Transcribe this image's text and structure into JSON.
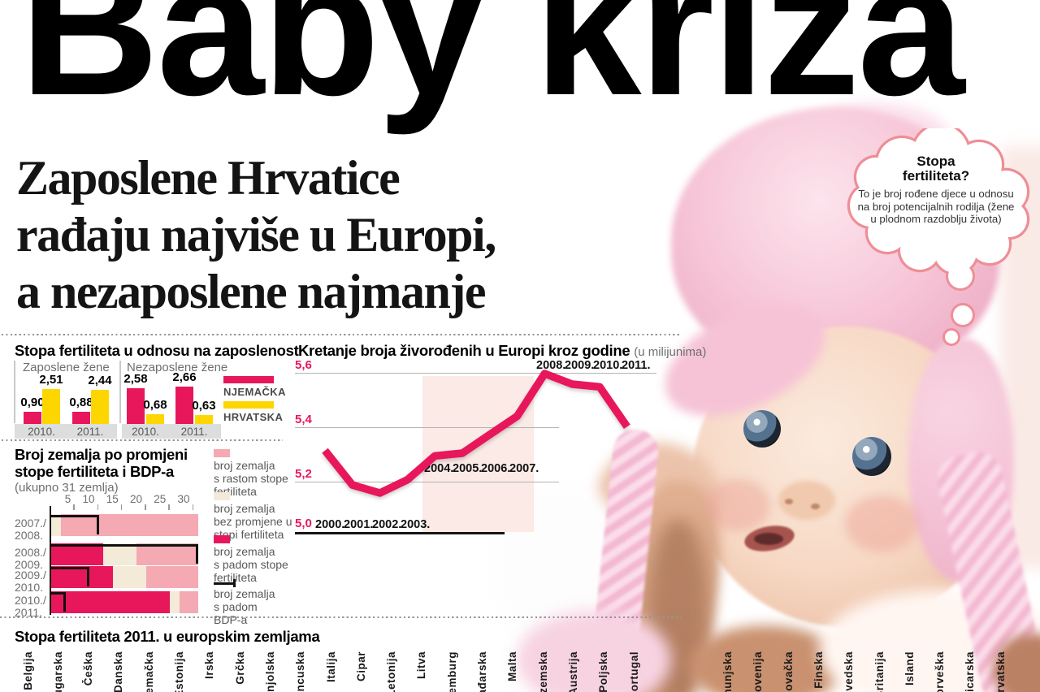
{
  "headline": "Baby kriza",
  "subheadline_lines": [
    "Zaposlene Hrvatice",
    "rađaju najviše u Europi,",
    "a nezaposlene najmanje"
  ],
  "bubble": {
    "title_lines": [
      "Stopa",
      "fertiliteta?"
    ],
    "body": "To je broj rođene djece u odnosu na broj potencijalnih rodilja (žene u plodnom razdoblju života)"
  },
  "colors": {
    "hot_pink": "#e8175c",
    "yellow": "#fdd600",
    "light_pink": "#f4a9b3",
    "cream": "#f3ead8",
    "band": "#fbeae6",
    "salmon": "#ee8e96",
    "strip_gray": "#dcdddd",
    "gray_text": "#6d6e70",
    "dark_text": "#4a4a4c"
  },
  "chart_data": [
    {
      "type": "bar",
      "title": "Stopa fertiliteta u odnosu na zaposlenost",
      "groups": [
        {
          "label": "Zaposlene žene",
          "categories": [
            "2010.",
            "2011."
          ],
          "series": [
            {
              "name": "NJEMAČKA",
              "color": "#e8175c",
              "values": [
                "0,90",
                "0,88"
              ]
            },
            {
              "name": "HRVATSKA",
              "color": "#fdd600",
              "values": [
                "2,51",
                "2,44"
              ]
            }
          ]
        },
        {
          "label": "Nezaposlene žene",
          "categories": [
            "2010.",
            "2011."
          ],
          "series": [
            {
              "name": "NJEMAČKA",
              "color": "#e8175c",
              "values": [
                "2,58",
                "2,66"
              ]
            },
            {
              "name": "HRVATSKA",
              "color": "#fdd600",
              "values": [
                "0,68",
                "0,63"
              ]
            }
          ]
        }
      ],
      "legend": [
        "NJEMAČKA",
        "HRVATSKA"
      ]
    },
    {
      "type": "line",
      "title": "Kretanje broja živorođenih u Europi kroz godine",
      "unit_note": "(u milijunima)",
      "years": [
        "2000.",
        "2001.",
        "2002.",
        "2003.",
        "2004.",
        "2005.",
        "2006.",
        "2007.",
        "2008.",
        "2009.",
        "2010.",
        "2011."
      ],
      "values": [
        5.31,
        5.18,
        5.15,
        5.2,
        5.29,
        5.3,
        5.37,
        5.44,
        5.6,
        5.56,
        5.55,
        5.4
      ],
      "ylim": [
        5.0,
        5.6
      ],
      "yticks": [
        "5,6",
        "5,4",
        "5,2",
        "5,0"
      ],
      "highlight_years": [
        "2004.",
        "2005.",
        "2006.",
        "2007."
      ],
      "line_color": "#e8175c",
      "grid": true
    },
    {
      "type": "stacked-bar-horizontal",
      "title_lines": [
        "Broj zemalja po promjeni",
        "stope fertiliteta i BDP-a"
      ],
      "subtitle": "(ukupno 31 zemlja)",
      "total_countries": 31,
      "xticks": [
        5,
        10,
        15,
        20,
        25,
        30
      ],
      "rows": [
        {
          "label_lines": [
            "2007./",
            "2008."
          ],
          "s_padom": 0,
          "bez_promjene": 2,
          "s_rastom": 29,
          "pad_bdp": 10
        },
        {
          "label_lines": [
            "2008./",
            "2009."
          ],
          "s_padom": 11,
          "bez_promjene": 7,
          "s_rastom": 13,
          "pad_bdp": 31
        },
        {
          "label_lines": [
            "2009./",
            "2010."
          ],
          "s_padom": 13,
          "bez_promjene": 7,
          "s_rastom": 11,
          "pad_bdp": 8
        },
        {
          "label_lines": [
            "2010./",
            "2011."
          ],
          "s_padom": 25,
          "bez_promjene": 2,
          "s_rastom": 4,
          "pad_bdp": 3
        }
      ],
      "legend": [
        {
          "key": "s_rastom",
          "swatch": "light_pink",
          "label_lines": [
            "broj zemalja",
            "s rastom stope",
            "fertiliteta"
          ]
        },
        {
          "key": "bez_promjene",
          "swatch": "cream",
          "label_lines": [
            "broj zemalja",
            "bez promjene u",
            "stopi fertiliteta"
          ]
        },
        {
          "key": "s_padom",
          "swatch": "hot_pink",
          "label_lines": [
            "broj zemalja",
            "s padom stope",
            "fertiliteta"
          ]
        },
        {
          "key": "pad_bdp",
          "swatch": "bracket",
          "label_lines": [
            "broj zemalja",
            "s padom",
            "BDP-a"
          ]
        }
      ]
    },
    {
      "type": "bar",
      "title": "Stopa fertiliteta 2011. u europskim zemljama",
      "categories": [
        "Belgija",
        "Bugarska",
        "Češka",
        "Danska",
        "Njemačka",
        "Estonija",
        "Irska",
        "Grčka",
        "Španjolska",
        "Francuska",
        "Italija",
        "Cipar",
        "Letonija",
        "Litva",
        "Luksemburg",
        "Mađarska",
        "Malta",
        "Nizozemska",
        "Austrija",
        "Poljska",
        "Portugal",
        "Rumunjska",
        "Slovenija",
        "Slovačka",
        "Finska",
        "Švedska",
        "V. Britanija",
        "Island",
        "Norveška",
        "Švicarska",
        "Hrvatska"
      ]
    }
  ]
}
